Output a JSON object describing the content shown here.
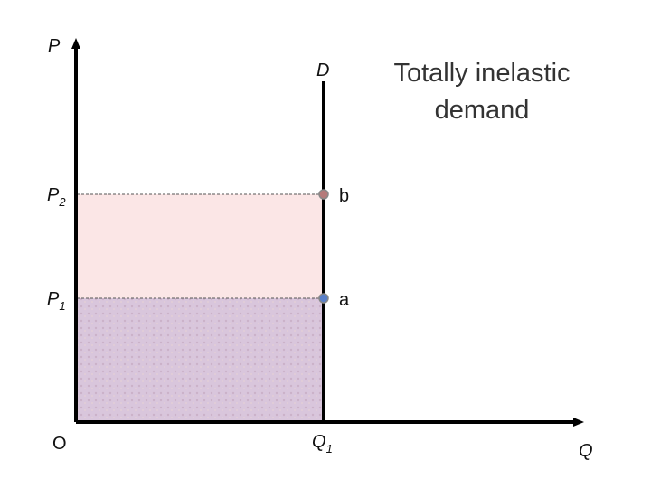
{
  "axes": {
    "y_label": "P",
    "x_label": "Q",
    "origin": "O"
  },
  "curve": {
    "label": "D"
  },
  "title": {
    "lines": [
      "Totally inelastic",
      "demand"
    ]
  },
  "prices": [
    {
      "main": "P",
      "sub": "2"
    },
    {
      "main": "P",
      "sub": "1"
    }
  ],
  "quantity": {
    "main": "Q",
    "sub": "1"
  },
  "points": [
    {
      "label": "b"
    },
    {
      "label": "a"
    }
  ]
}
